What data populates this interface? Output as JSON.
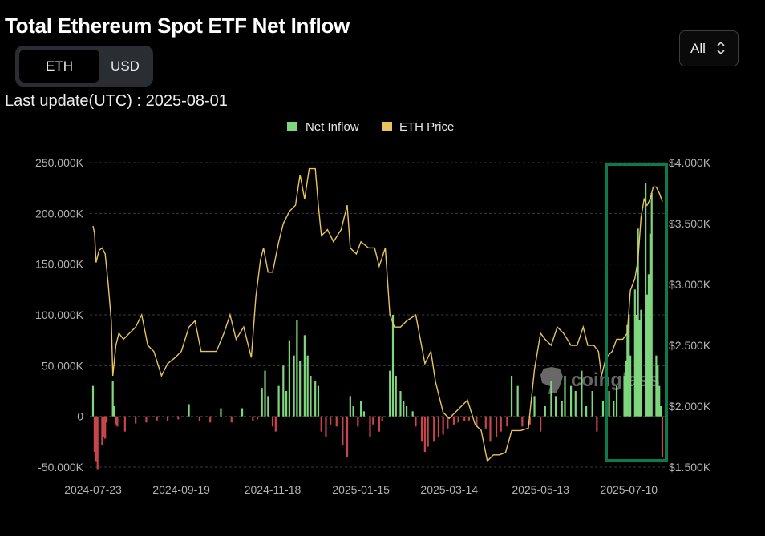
{
  "title": "Total Ethereum Spot ETF Net Inflow",
  "toggle": {
    "options": [
      "ETH",
      "USD"
    ],
    "selected": "ETH"
  },
  "range_select": {
    "value": "All"
  },
  "last_update": "Last update(UTC) : 2025-08-01",
  "watermark": "coinglass",
  "colors": {
    "inflow_pos": "#7ed67e",
    "inflow_neg": "#c8464b",
    "price": "#e8c45c",
    "highlight": "#0e7a4a",
    "grid": "#3a3a3a"
  },
  "chart_data": {
    "type": "bar",
    "legend": [
      {
        "name": "Net Inflow",
        "color": "#7ed67e"
      },
      {
        "name": "ETH Price",
        "color": "#e8c45c"
      }
    ],
    "legend_position": "top-center",
    "x_ticks": [
      "2024-07-23",
      "2024-09-19",
      "2024-11-18",
      "2025-01-15",
      "2025-03-14",
      "2025-05-13",
      "2025-07-10"
    ],
    "y_left": {
      "ticks": [
        "250.000K",
        "200.000K",
        "150.000K",
        "100.000K",
        "50.000K",
        "0",
        "-50.000K"
      ],
      "range": [
        -50000,
        250000
      ]
    },
    "y_right": {
      "ticks": [
        "$4.000K",
        "$3.500K",
        "$3.000K",
        "$2.500K",
        "$2.000K",
        "$1.500K"
      ],
      "range": [
        1500,
        4000
      ]
    },
    "x_range": [
      "2024-07-23",
      "2025-08-01"
    ],
    "grid": "horizontal-dashed",
    "series": [
      {
        "name": "Net Inflow",
        "points": [
          [
            "2024-07-23",
            30000
          ],
          [
            "2024-07-24",
            -35000
          ],
          [
            "2024-07-25",
            -45000
          ],
          [
            "2024-07-26",
            -52000
          ],
          [
            "2024-07-29",
            -28000
          ],
          [
            "2024-07-30",
            -20000
          ],
          [
            "2024-07-31",
            -22000
          ],
          [
            "2024-08-01",
            -6000
          ],
          [
            "2024-08-05",
            35000
          ],
          [
            "2024-08-06",
            10000
          ],
          [
            "2024-08-07",
            -8000
          ],
          [
            "2024-08-08",
            -10000
          ],
          [
            "2024-08-13",
            -15000
          ],
          [
            "2024-08-20",
            -7000
          ],
          [
            "2024-08-27",
            -6000
          ],
          [
            "2024-09-03",
            -4000
          ],
          [
            "2024-09-10",
            -5000
          ],
          [
            "2024-09-17",
            -3000
          ],
          [
            "2024-09-24",
            12000
          ],
          [
            "2024-10-01",
            -5000
          ],
          [
            "2024-10-08",
            -6000
          ],
          [
            "2024-10-15",
            8000
          ],
          [
            "2024-10-22",
            -6000
          ],
          [
            "2024-10-29",
            8000
          ],
          [
            "2024-11-05",
            -5000
          ],
          [
            "2024-11-08",
            -3000
          ],
          [
            "2024-11-11",
            28000
          ],
          [
            "2024-11-13",
            45000
          ],
          [
            "2024-11-15",
            20000
          ],
          [
            "2024-11-18",
            -10000
          ],
          [
            "2024-11-20",
            -15000
          ],
          [
            "2024-11-22",
            30000
          ],
          [
            "2024-11-25",
            50000
          ],
          [
            "2024-11-27",
            25000
          ],
          [
            "2024-11-29",
            75000
          ],
          [
            "2024-12-02",
            60000
          ],
          [
            "2024-12-04",
            95000
          ],
          [
            "2024-12-06",
            55000
          ],
          [
            "2024-12-09",
            80000
          ],
          [
            "2024-12-11",
            60000
          ],
          [
            "2024-12-13",
            40000
          ],
          [
            "2024-12-16",
            35000
          ],
          [
            "2024-12-18",
            30000
          ],
          [
            "2024-12-20",
            -15000
          ],
          [
            "2024-12-23",
            -20000
          ],
          [
            "2024-12-26",
            -8000
          ],
          [
            "2024-12-30",
            -10000
          ],
          [
            "2025-01-03",
            -28000
          ],
          [
            "2025-01-06",
            -40000
          ],
          [
            "2025-01-08",
            20000
          ],
          [
            "2025-01-10",
            10000
          ],
          [
            "2025-01-13",
            -10000
          ],
          [
            "2025-01-15",
            15000
          ],
          [
            "2025-01-17",
            5000
          ],
          [
            "2025-01-21",
            -20000
          ],
          [
            "2025-01-23",
            -8000
          ],
          [
            "2025-01-27",
            -15000
          ],
          [
            "2025-01-29",
            -5000
          ],
          [
            "2025-02-03",
            45000
          ],
          [
            "2025-02-05",
            100000
          ],
          [
            "2025-02-07",
            40000
          ],
          [
            "2025-02-10",
            25000
          ],
          [
            "2025-02-12",
            15000
          ],
          [
            "2025-02-14",
            10000
          ],
          [
            "2025-02-18",
            5000
          ],
          [
            "2025-02-20",
            -10000
          ],
          [
            "2025-02-24",
            -25000
          ],
          [
            "2025-02-26",
            -35000
          ],
          [
            "2025-02-28",
            -30000
          ],
          [
            "2025-03-04",
            -25000
          ],
          [
            "2025-03-07",
            -20000
          ],
          [
            "2025-03-10",
            -18000
          ],
          [
            "2025-03-13",
            -12000
          ],
          [
            "2025-03-17",
            -8000
          ],
          [
            "2025-03-20",
            -6000
          ],
          [
            "2025-03-24",
            -5000
          ],
          [
            "2025-03-27",
            -4000
          ],
          [
            "2025-04-01",
            -10000
          ],
          [
            "2025-04-07",
            -12000
          ],
          [
            "2025-04-10",
            -25000
          ],
          [
            "2025-04-14",
            -20000
          ],
          [
            "2025-04-17",
            -15000
          ],
          [
            "2025-04-21",
            -10000
          ],
          [
            "2025-04-24",
            40000
          ],
          [
            "2025-04-28",
            30000
          ],
          [
            "2025-05-01",
            -10000
          ],
          [
            "2025-05-06",
            -8000
          ],
          [
            "2025-05-09",
            20000
          ],
          [
            "2025-05-13",
            -15000
          ],
          [
            "2025-05-16",
            10000
          ],
          [
            "2025-05-20",
            35000
          ],
          [
            "2025-05-23",
            20000
          ],
          [
            "2025-05-27",
            15000
          ],
          [
            "2025-05-29",
            40000
          ],
          [
            "2025-06-02",
            30000
          ],
          [
            "2025-06-05",
            25000
          ],
          [
            "2025-06-09",
            45000
          ],
          [
            "2025-06-12",
            10000
          ],
          [
            "2025-06-16",
            25000
          ],
          [
            "2025-06-19",
            -15000
          ],
          [
            "2025-06-23",
            15000
          ],
          [
            "2025-06-25",
            20000
          ],
          [
            "2025-06-27",
            25000
          ],
          [
            "2025-06-30",
            15000
          ],
          [
            "2025-07-02",
            30000
          ],
          [
            "2025-07-07",
            40000
          ],
          [
            "2025-07-08",
            55000
          ],
          [
            "2025-07-09",
            90000
          ],
          [
            "2025-07-10",
            100000
          ],
          [
            "2025-07-11",
            60000
          ],
          [
            "2025-07-14",
            125000
          ],
          [
            "2025-07-15",
            100000
          ],
          [
            "2025-07-16",
            185000
          ],
          [
            "2025-07-17",
            95000
          ],
          [
            "2025-07-18",
            105000
          ],
          [
            "2025-07-21",
            230000
          ],
          [
            "2025-07-22",
            120000
          ],
          [
            "2025-07-23",
            140000
          ],
          [
            "2025-07-24",
            180000
          ],
          [
            "2025-07-25",
            220000
          ],
          [
            "2025-07-28",
            60000
          ],
          [
            "2025-07-29",
            50000
          ],
          [
            "2025-07-30",
            30000
          ],
          [
            "2025-07-31",
            10000
          ],
          [
            "2025-08-01",
            -40000
          ]
        ]
      },
      {
        "name": "ETH Price",
        "points": [
          [
            "2024-07-23",
            3480
          ],
          [
            "2024-07-24",
            3420
          ],
          [
            "2024-07-25",
            3180
          ],
          [
            "2024-07-27",
            3280
          ],
          [
            "2024-07-29",
            3300
          ],
          [
            "2024-07-31",
            3250
          ],
          [
            "2024-08-02",
            3000
          ],
          [
            "2024-08-04",
            2700
          ],
          [
            "2024-08-05",
            2250
          ],
          [
            "2024-08-07",
            2500
          ],
          [
            "2024-08-09",
            2600
          ],
          [
            "2024-08-12",
            2550
          ],
          [
            "2024-08-16",
            2600
          ],
          [
            "2024-08-20",
            2650
          ],
          [
            "2024-08-24",
            2750
          ],
          [
            "2024-08-28",
            2500
          ],
          [
            "2024-09-01",
            2450
          ],
          [
            "2024-09-06",
            2250
          ],
          [
            "2024-09-10",
            2350
          ],
          [
            "2024-09-15",
            2400
          ],
          [
            "2024-09-19",
            2450
          ],
          [
            "2024-09-24",
            2650
          ],
          [
            "2024-09-28",
            2700
          ],
          [
            "2024-10-02",
            2450
          ],
          [
            "2024-10-07",
            2450
          ],
          [
            "2024-10-12",
            2450
          ],
          [
            "2024-10-17",
            2600
          ],
          [
            "2024-10-21",
            2750
          ],
          [
            "2024-10-25",
            2550
          ],
          [
            "2024-10-30",
            2650
          ],
          [
            "2024-11-04",
            2400
          ],
          [
            "2024-11-07",
            2900
          ],
          [
            "2024-11-10",
            3200
          ],
          [
            "2024-11-12",
            3300
          ],
          [
            "2024-11-15",
            3100
          ],
          [
            "2024-11-18",
            3100
          ],
          [
            "2024-11-22",
            3350
          ],
          [
            "2024-11-25",
            3500
          ],
          [
            "2024-11-29",
            3600
          ],
          [
            "2024-12-03",
            3650
          ],
          [
            "2024-12-06",
            3900
          ],
          [
            "2024-12-09",
            3700
          ],
          [
            "2024-12-12",
            3950
          ],
          [
            "2024-12-16",
            3950
          ],
          [
            "2024-12-18",
            3650
          ],
          [
            "2024-12-20",
            3400
          ],
          [
            "2024-12-24",
            3450
          ],
          [
            "2024-12-28",
            3350
          ],
          [
            "2025-01-02",
            3450
          ],
          [
            "2025-01-06",
            3650
          ],
          [
            "2025-01-08",
            3300
          ],
          [
            "2025-01-12",
            3250
          ],
          [
            "2025-01-15",
            3350
          ],
          [
            "2025-01-20",
            3300
          ],
          [
            "2025-01-24",
            3300
          ],
          [
            "2025-01-27",
            3150
          ],
          [
            "2025-01-31",
            3300
          ],
          [
            "2025-02-03",
            2750
          ],
          [
            "2025-02-06",
            2650
          ],
          [
            "2025-02-10",
            2650
          ],
          [
            "2025-02-14",
            2700
          ],
          [
            "2025-02-20",
            2750
          ],
          [
            "2025-02-26",
            2350
          ],
          [
            "2025-03-02",
            2450
          ],
          [
            "2025-03-05",
            2200
          ],
          [
            "2025-03-10",
            1950
          ],
          [
            "2025-03-14",
            1900
          ],
          [
            "2025-03-18",
            1950
          ],
          [
            "2025-03-22",
            2000
          ],
          [
            "2025-03-26",
            2050
          ],
          [
            "2025-03-31",
            1850
          ],
          [
            "2025-04-04",
            1800
          ],
          [
            "2025-04-08",
            1550
          ],
          [
            "2025-04-12",
            1600
          ],
          [
            "2025-04-16",
            1600
          ],
          [
            "2025-04-20",
            1620
          ],
          [
            "2025-04-24",
            1800
          ],
          [
            "2025-04-30",
            1800
          ],
          [
            "2025-05-05",
            1820
          ],
          [
            "2025-05-09",
            2300
          ],
          [
            "2025-05-13",
            2600
          ],
          [
            "2025-05-16",
            2550
          ],
          [
            "2025-05-20",
            2500
          ],
          [
            "2025-05-24",
            2650
          ],
          [
            "2025-05-28",
            2600
          ],
          [
            "2025-06-02",
            2500
          ],
          [
            "2025-06-06",
            2500
          ],
          [
            "2025-06-10",
            2650
          ],
          [
            "2025-06-13",
            2500
          ],
          [
            "2025-06-17",
            2500
          ],
          [
            "2025-06-20",
            2450
          ],
          [
            "2025-06-22",
            2250
          ],
          [
            "2025-06-25",
            2400
          ],
          [
            "2025-06-29",
            2450
          ],
          [
            "2025-07-02",
            2550
          ],
          [
            "2025-07-06",
            2550
          ],
          [
            "2025-07-09",
            2600
          ],
          [
            "2025-07-11",
            2950
          ],
          [
            "2025-07-14",
            3050
          ],
          [
            "2025-07-16",
            3200
          ],
          [
            "2025-07-18",
            3550
          ],
          [
            "2025-07-20",
            3700
          ],
          [
            "2025-07-22",
            3650
          ],
          [
            "2025-07-24",
            3700
          ],
          [
            "2025-07-26",
            3800
          ],
          [
            "2025-07-28",
            3800
          ],
          [
            "2025-07-30",
            3750
          ],
          [
            "2025-08-01",
            3680
          ]
        ]
      }
    ]
  }
}
